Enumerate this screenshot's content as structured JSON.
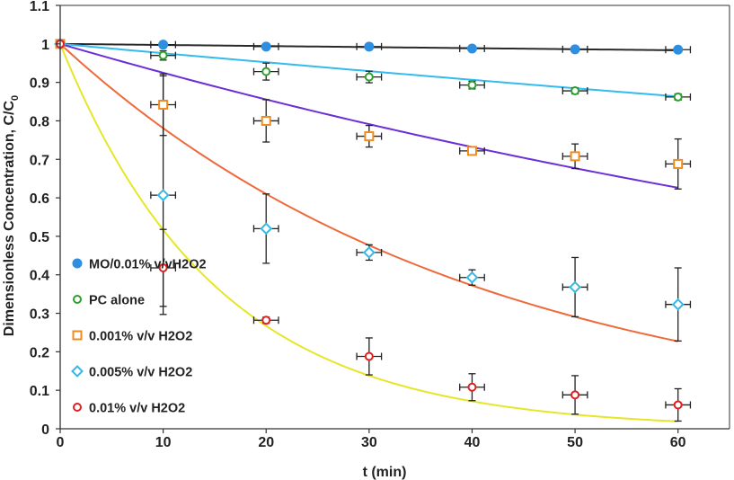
{
  "chart_data": {
    "type": "scatter",
    "title": "",
    "xlabel": "t (min)",
    "ylabel_main": "Dimensionless Concentration, C/C",
    "ylabel_sub": "0",
    "xlim": [
      0,
      65
    ],
    "ylim": [
      0,
      1.1
    ],
    "xticks": [
      0,
      10,
      20,
      30,
      40,
      50,
      60
    ],
    "xtick_labels": [
      "0",
      "10",
      "20",
      "30",
      "40",
      "50",
      "60"
    ],
    "yticks": [
      0,
      0.1,
      0.2,
      0.3,
      0.4,
      0.5,
      0.6,
      0.7,
      0.8,
      0.9,
      1,
      1.1
    ],
    "ytick_labels": [
      "0",
      "0.1",
      "0.2",
      "0.3",
      "0.4",
      "0.5",
      "0.6",
      "0.7",
      "0.8",
      "0.9",
      "1",
      "1.1"
    ],
    "legend_position": "left-bottom",
    "series": [
      {
        "name": "MO/0.01% v/vH2O2",
        "marker": "filled-circle",
        "color": "#2e8fe0",
        "x": [
          0,
          10,
          20,
          30,
          40,
          50,
          60
        ],
        "y": [
          1.0,
          0.998,
          0.993,
          0.993,
          0.988,
          0.986,
          0.985
        ],
        "xerr": [
          0,
          1.2,
          1.2,
          1.2,
          1.2,
          1.2,
          1.2
        ],
        "yerr": [
          0,
          0.0,
          0.0,
          0.0,
          0.0,
          0.0,
          0.0
        ],
        "fit": {
          "color": "#2a2a2a",
          "k": 0.00028
        }
      },
      {
        "name": "PC alone",
        "marker": "open-circle",
        "color": "#2ca02c",
        "x": [
          0,
          10,
          20,
          30,
          40,
          50,
          60
        ],
        "y": [
          1.0,
          0.97,
          0.928,
          0.914,
          0.893,
          0.878,
          0.862
        ],
        "xerr": [
          0,
          1.2,
          1.2,
          1.2,
          1.2,
          1.2,
          1.2
        ],
        "yerr": [
          0,
          0.012,
          0.022,
          0.015,
          0.01,
          0.008,
          0.008
        ],
        "fit": {
          "color": "#33bbee",
          "k": 0.00245
        }
      },
      {
        "name": "0.001% v/v H2O2",
        "marker": "open-square",
        "color": "#f08c1e",
        "x": [
          0,
          10,
          20,
          30,
          40,
          50,
          60
        ],
        "y": [
          1.0,
          0.842,
          0.8,
          0.76,
          0.722,
          0.708,
          0.688
        ],
        "xerr": [
          0,
          1.2,
          1.2,
          1.2,
          1.2,
          1.2,
          1.2
        ],
        "yerr": [
          0,
          0.08,
          0.055,
          0.028,
          0.006,
          0.032,
          0.065
        ],
        "fit": {
          "color": "#6a2fd6",
          "k": 0.0078
        }
      },
      {
        "name": "0.005% v/v H2O2",
        "marker": "open-diamond",
        "color": "#36b8e6",
        "x": [
          0,
          10,
          20,
          30,
          40,
          50,
          60
        ],
        "y": [
          1.0,
          0.607,
          0.52,
          0.458,
          0.393,
          0.368,
          0.323
        ],
        "xerr": [
          0,
          1.2,
          1.2,
          1.2,
          1.2,
          1.2,
          1.2
        ],
        "yerr": [
          0,
          0.31,
          0.09,
          0.02,
          0.02,
          0.077,
          0.095
        ],
        "fit": {
          "color": "#ee6a3a",
          "k": 0.0247
        }
      },
      {
        "name": "0.01% v/v H2O2",
        "marker": "open-circle",
        "color": "#e02020",
        "x": [
          0,
          10,
          20,
          30,
          40,
          50,
          60
        ],
        "y": [
          1.0,
          0.418,
          0.282,
          0.188,
          0.108,
          0.088,
          0.062
        ],
        "xerr": [
          0,
          1.2,
          1.2,
          1.2,
          1.2,
          1.2,
          1.2
        ],
        "yerr": [
          0,
          0.1,
          0.008,
          0.048,
          0.035,
          0.05,
          0.042
        ],
        "fit": {
          "color": "#e6e628",
          "k": 0.066
        }
      }
    ]
  }
}
